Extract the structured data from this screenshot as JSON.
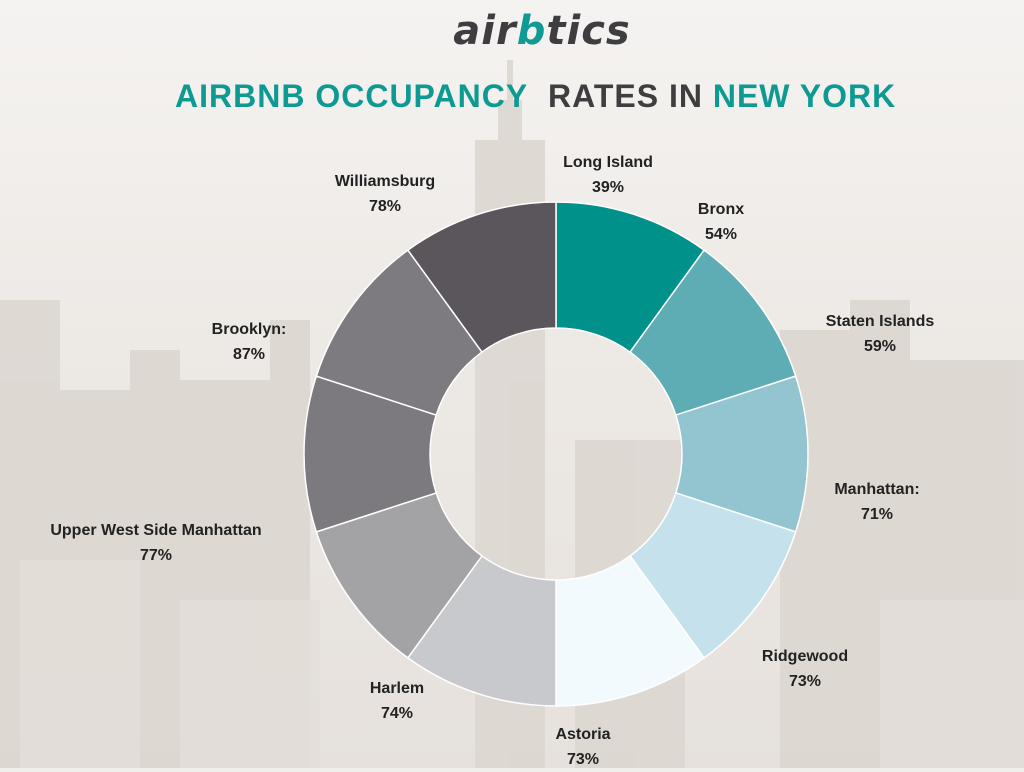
{
  "logo": {
    "part1": "air",
    "part2": "b",
    "part3": "tics"
  },
  "title": {
    "part1": "AIRBNB OCCUPANCY",
    "part2": "RATES  IN",
    "part3": "NEW YORK"
  },
  "colors": {
    "accent": "#0c9a92",
    "dark": "#3e3d3f"
  },
  "chart_data": {
    "type": "pie",
    "variant": "donut",
    "categories": [
      "Long Island",
      "Bronx",
      "Staten Islands",
      "Manhattan:",
      "Ridgewood",
      "Astoria",
      "Harlem",
      "Upper West Side Manhattan",
      "Williamsburg",
      "Brooklyn:"
    ],
    "order": [
      "Long Island",
      "Bronx",
      "Staten Islands",
      "Manhattan:",
      "Ridgewood",
      "Astoria",
      "Harlem",
      "Upper West Side Manhattan",
      "Brooklyn:",
      "Williamsburg"
    ],
    "values": [
      39,
      54,
      59,
      71,
      73,
      73,
      74,
      77,
      78,
      87
    ],
    "value_labels": [
      "39%",
      "54%",
      "59%",
      "71%",
      "73%",
      "73%",
      "74%",
      "77%",
      "78%",
      "87%"
    ],
    "slice_colors": [
      "#00918b",
      "#5fadb4",
      "#93c5d1",
      "#c4e1ec",
      "#f3fafd",
      "#c7c9cc",
      "#a3a3a6",
      "#7c7a7e",
      "#5b565b",
      "#7d7b7f"
    ],
    "legend": "labels around slices"
  }
}
